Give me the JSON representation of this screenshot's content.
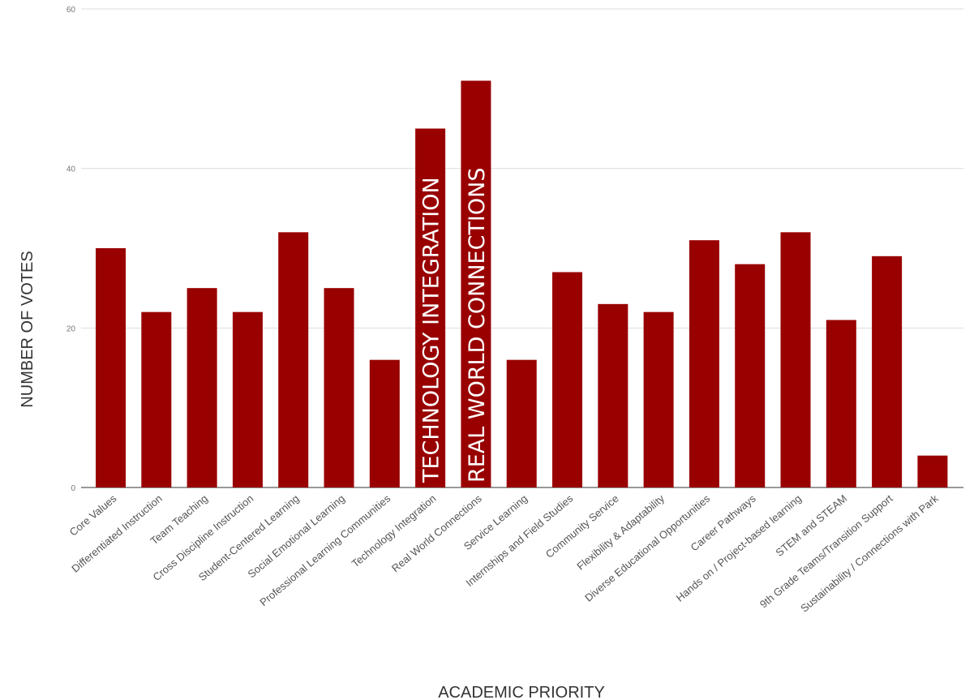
{
  "chart_data": {
    "type": "bar",
    "xlabel": "ACADEMIC PRIORITY",
    "ylabel": "NUMBER OF VOTES",
    "ylim": [
      0,
      60
    ],
    "yticks": [
      0,
      20,
      40,
      60
    ],
    "grid": true,
    "bar_color": "#990000",
    "categories": [
      "Core Values",
      "Differentiated Instruction",
      "Team Teaching",
      "Cross Discipline Instruction",
      "Student-Centered Learning",
      "Social Emotional Learning",
      "Professional Learning Communities",
      "Technology Integration",
      "Real World Connections",
      "Service Learning",
      "Internships and Field Studies",
      "Community Service",
      "Flexibility & Adaptability",
      "Diverse Educational Opportunities",
      "Career Pathways",
      "Hands on / Project-based learning",
      "STEM and STEAM",
      "9th Grade Teams/Transition Support",
      "Sustainability / Connections with Park"
    ],
    "values": [
      30,
      22,
      25,
      22,
      32,
      25,
      16,
      45,
      51,
      16,
      27,
      23,
      22,
      31,
      28,
      32,
      21,
      29,
      4
    ],
    "annotations": [
      {
        "category_index": 7,
        "text": "TECHNOLOGY INTEGRATION"
      },
      {
        "category_index": 8,
        "text": "REAL WORLD CONNECTIONS"
      }
    ]
  }
}
